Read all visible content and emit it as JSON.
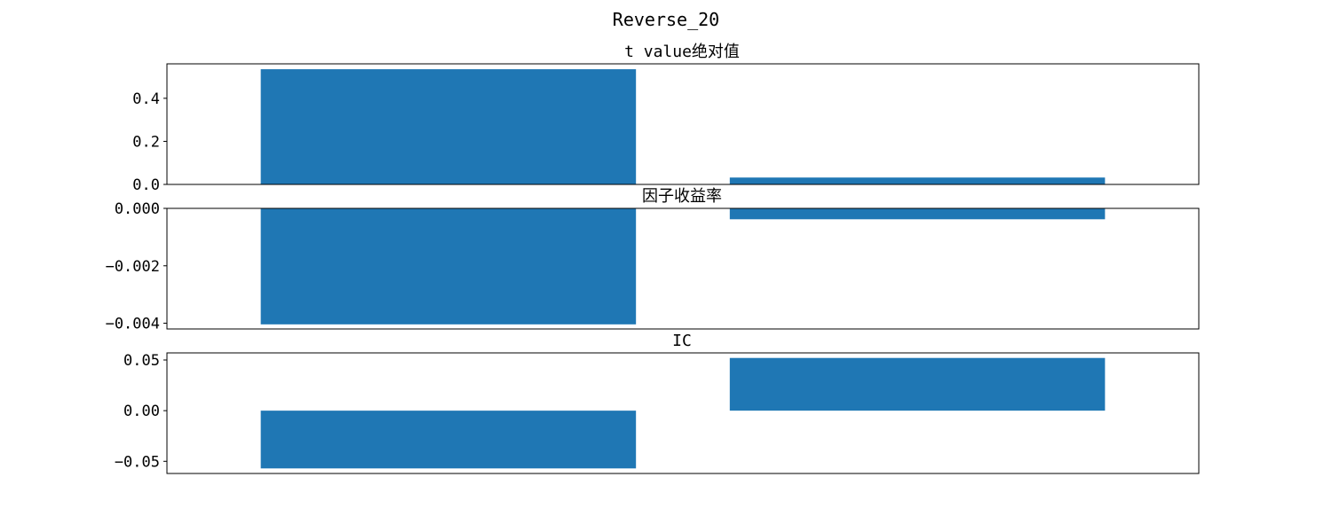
{
  "figure": {
    "title": "Reverse_20"
  },
  "style": {
    "bar_color": "#1f77b4",
    "axis_color": "#000000"
  },
  "chart_data": [
    {
      "type": "bar",
      "title": "t value绝对值",
      "categories": [
        "",
        ""
      ],
      "values": [
        0.535,
        0.032
      ],
      "ylim": [
        0,
        0.56
      ],
      "yticks": [
        0.0,
        0.2,
        0.4
      ],
      "ytick_labels": [
        "0.0",
        "0.2",
        "0.4"
      ],
      "grid": false
    },
    {
      "type": "bar",
      "title": "因子收益率",
      "categories": [
        "",
        ""
      ],
      "values": [
        -0.00404,
        -0.00038
      ],
      "ylim": [
        -0.0042,
        0
      ],
      "yticks": [
        0.0,
        -0.002,
        -0.004
      ],
      "ytick_labels": [
        "0.000",
        "−0.002",
        "−0.004"
      ],
      "grid": false
    },
    {
      "type": "bar",
      "title": "IC",
      "categories": [
        "",
        ""
      ],
      "values": [
        -0.057,
        0.052
      ],
      "ylim": [
        -0.062,
        0.057
      ],
      "yticks": [
        0.05,
        0.0,
        -0.05
      ],
      "ytick_labels": [
        "0.05",
        "0.00",
        "−0.05"
      ],
      "grid": false
    }
  ]
}
